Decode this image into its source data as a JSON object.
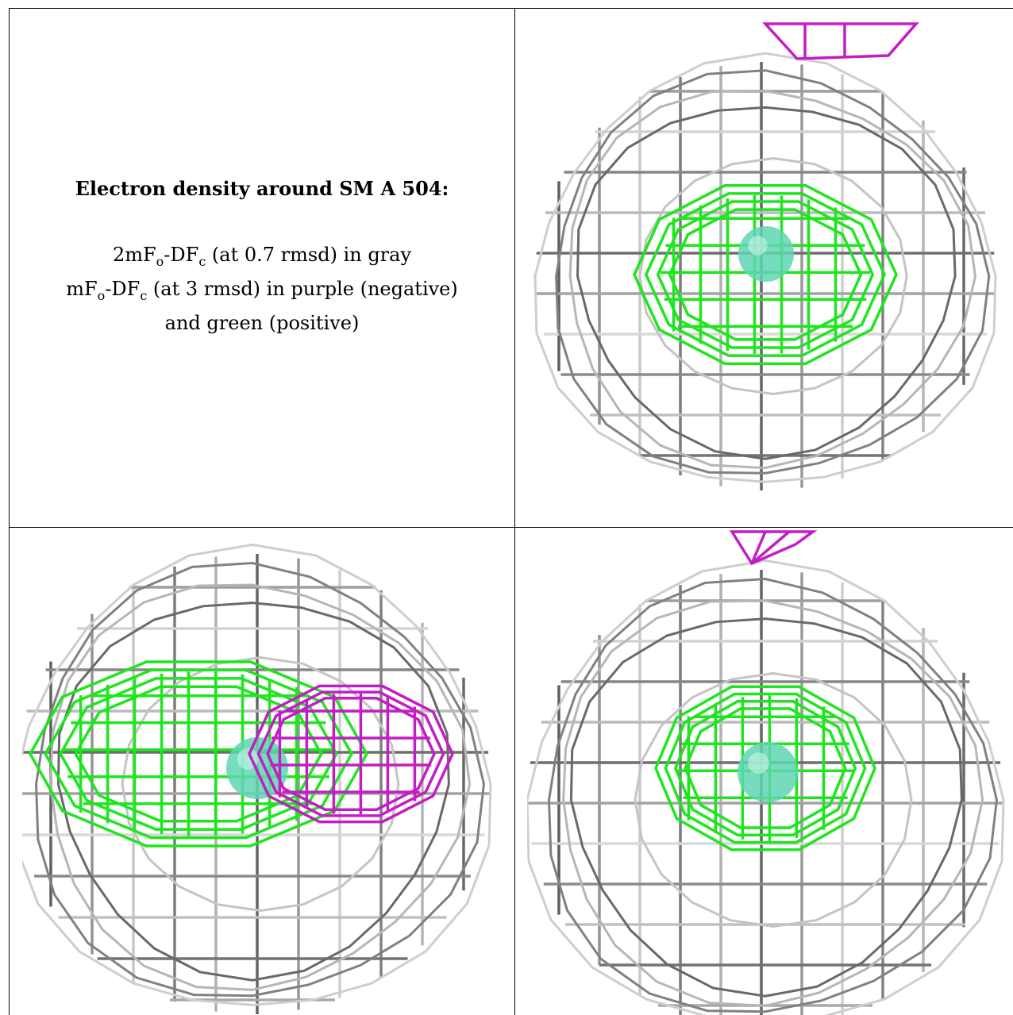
{
  "caption": {
    "title": "Electron density around SM A 504:",
    "line1": {
      "a": "2mF",
      "s1": "o",
      "b": "-DF",
      "s2": "c",
      "c": " (at 0.7 rmsd) in gray"
    },
    "line2": {
      "a": "mF",
      "s1": "o",
      "b": "-DF",
      "s2": "c",
      "c": " (at 3 rmsd) in purple (negative)"
    },
    "line3": "and green (positive)"
  },
  "colors": {
    "gray_mesh": "#9a9a9a",
    "negative_mesh": "#c21ec4",
    "positive_mesh": "#1fe51f",
    "atom": "#5fd6b2"
  },
  "panels": [
    {
      "name": "view-top-right",
      "negative_density": "small cap at top edge"
    },
    {
      "name": "view-bottom-left",
      "negative_density": "lobe overlapping atom on the right"
    },
    {
      "name": "view-bottom-right",
      "negative_density": "small cap at top edge"
    }
  ]
}
